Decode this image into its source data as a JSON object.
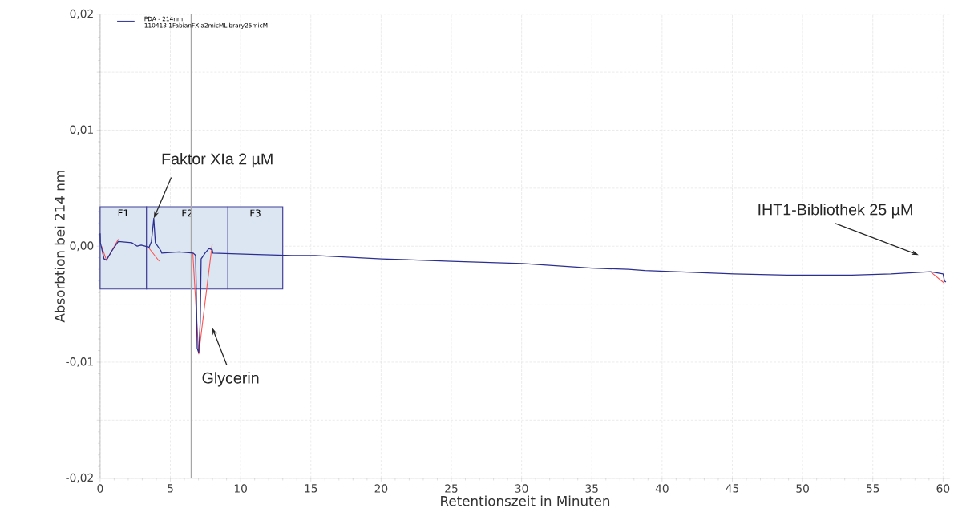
{
  "chart_data": {
    "type": "line",
    "xlabel": "Retentionszeit in Minuten",
    "ylabel": "Absorbtion bei 214 nm",
    "legend": "top left",
    "legend_title": "110413 1FabianFXIa2micMLibrary25micM",
    "grid": true,
    "xlim": [
      0,
      60.5
    ],
    "ylim": [
      -0.02,
      0.02
    ],
    "xticks": [
      0,
      5,
      10,
      15,
      20,
      25,
      30,
      35,
      40,
      45,
      50,
      55,
      60
    ],
    "yticks": [
      {
        "value": -0.02,
        "label": "-0,02"
      },
      {
        "value": -0.015,
        "label": null
      },
      {
        "value": -0.01,
        "label": "-0,01"
      },
      {
        "value": -0.005,
        "label": null
      },
      {
        "value": 0,
        "label": "0,00"
      },
      {
        "value": 0.005,
        "label": null
      },
      {
        "value": 0.01,
        "label": "0,01"
      },
      {
        "value": 0.015,
        "label": null
      },
      {
        "value": 0.02,
        "label": "0,02"
      }
    ],
    "x": [
      0,
      0.02,
      0.28,
      0.45,
      0.84,
      1.29,
      2.25,
      2.64,
      2.92,
      3.2,
      3.48,
      3.65,
      3.82,
      3.93,
      4.33,
      4.38,
      5.62,
      6.63,
      6.8,
      6.85,
      6.91,
      7.02,
      7.13,
      7.19,
      7.47,
      7.75,
      7.98,
      8.03,
      10.67,
      13.65,
      15.3,
      20.06,
      25.0,
      30.06,
      35.0,
      37.6,
      38.76,
      45.1,
      48.9,
      53.5,
      56.3,
      59.1,
      60.0,
      60.1,
      60.2
    ],
    "series": [
      {
        "name": "PDA - 214nm",
        "color": "#2b2f8f",
        "values": [
          0.0011,
          0.0003,
          -0.0011,
          -0.0012,
          -0.0004,
          0.0004,
          0.0003,
          0.0,
          0.0001,
          0.0,
          -0.0001,
          0.0004,
          0.0024,
          0.0003,
          -0.0004,
          -0.0006,
          -0.0005,
          -0.0006,
          -0.0008,
          -0.0042,
          -0.0088,
          -0.0092,
          -0.0065,
          -0.0011,
          -0.0006,
          -0.0002,
          -0.0003,
          -0.0006,
          -0.0007,
          -0.0008,
          -0.0008,
          -0.0011,
          -0.0013,
          -0.0015,
          -0.0019,
          -0.002,
          -0.0021,
          -0.0024,
          -0.0025,
          -0.0025,
          -0.0024,
          -0.0022,
          -0.0024,
          -0.003,
          -0.0031
        ]
      },
      {
        "type": "line",
        "color": "#ff5050",
        "x": [
          0.1,
          0.45,
          1.3,
          2.0,
          3.37,
          4.21,
          5.0,
          6.6,
          7.02,
          7.98,
          30.0,
          59.1,
          60.1
        ],
        "values": [
          0.0,
          -0.0012,
          0.0006,
          null,
          0.0,
          -0.0013,
          null,
          -0.0006,
          -0.0093,
          0.0002,
          null,
          -0.0022,
          -0.0032
        ]
      }
    ],
    "ref_lines": [
      {
        "axis": "x",
        "value": 6.5,
        "color": "#a6a6a6"
      }
    ],
    "bands": [
      {
        "axis": "x",
        "from": 0,
        "to": 3.3,
        "label": "F1",
        "color": "#dce6f2"
      },
      {
        "axis": "x",
        "from": 3.3,
        "to": 9.1,
        "label": "F2",
        "color": "#dce6f2"
      },
      {
        "axis": "x",
        "from": 9.1,
        "to": 13.0,
        "label": "F3",
        "color": "#dce6f2"
      }
    ],
    "annotations": [
      {
        "text": "Faktor XIa 2 µM",
        "x": 3.82,
        "y": 0.0024
      },
      "Glycerin",
      "IHT1-Bibliothek 25 µM"
    ]
  }
}
